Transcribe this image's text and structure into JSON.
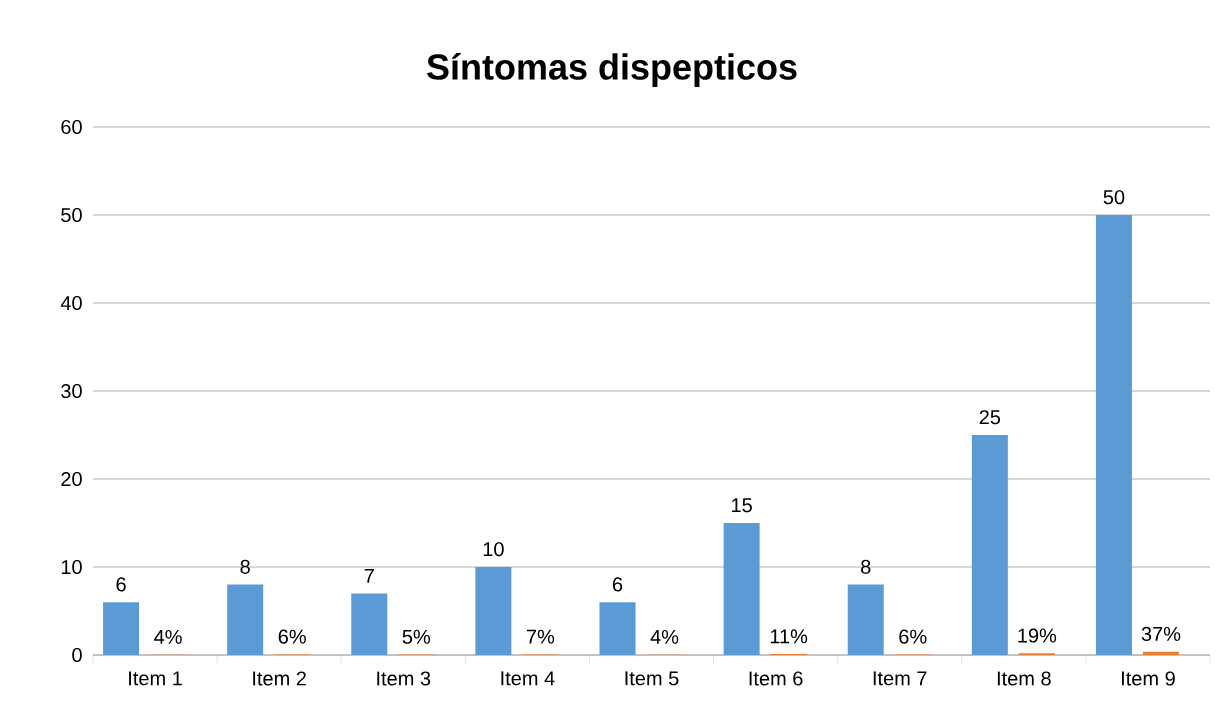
{
  "chart_data": {
    "type": "bar",
    "title": "Síntomas dispepticos",
    "categories": [
      "Item 1",
      "Item 2",
      "Item 3",
      "Item 4",
      "Item 5",
      "Item 6",
      "Item 7",
      "Item 8",
      "Item 9"
    ],
    "series": [
      {
        "color": "#5b9bd5",
        "values": [
          6,
          8,
          7,
          10,
          6,
          15,
          8,
          25,
          50
        ],
        "value_labels": [
          "6",
          "8",
          "7",
          "10",
          "6",
          "15",
          "8",
          "25",
          "50"
        ]
      },
      {
        "color": "#ed7d31",
        "values": [
          0.04,
          0.06,
          0.05,
          0.07,
          0.04,
          0.11,
          0.06,
          0.19,
          0.37
        ],
        "value_labels": [
          "4%",
          "6%",
          "5%",
          "7%",
          "4%",
          "11%",
          "6%",
          "19%",
          "37%"
        ]
      }
    ],
    "ylim": [
      0,
      60
    ],
    "yticks": [
      0,
      10,
      20,
      30,
      40,
      50,
      60
    ],
    "grid": "y"
  }
}
